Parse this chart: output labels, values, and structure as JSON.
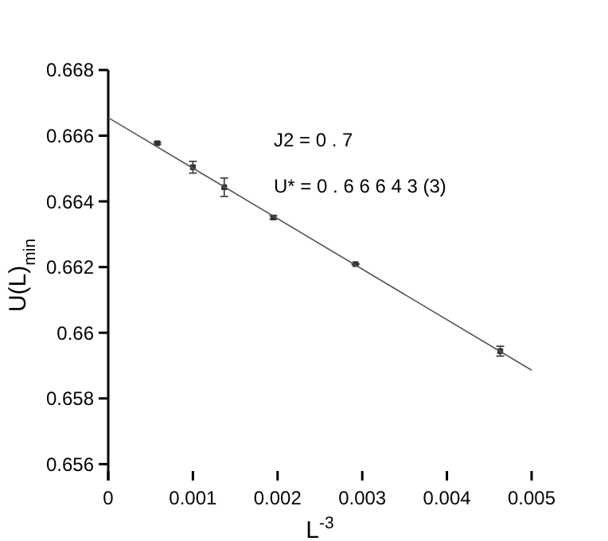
{
  "chart_data": {
    "type": "scatter",
    "xlabel": "L$^{-3}$",
    "ylabel": "U(L)$_{min}$",
    "xlim": [
      0,
      0.005
    ],
    "xticks": [
      0,
      0.001,
      0.002,
      0.003,
      0.004,
      0.005
    ],
    "ylim": [
      0.6555,
      0.668
    ],
    "yticks": [
      0.656,
      0.658,
      0.66,
      0.662,
      0.664,
      0.666,
      0.668
    ],
    "grid": false,
    "annotations": [
      "J2 = 0 . 7",
      "U* = 0 . 6 6 6 4 3 (3)"
    ],
    "series": [
      {
        "color": "#333333",
        "marker": "square",
        "x": [
          0.00058,
          0.001,
          0.00137,
          0.00195,
          0.00292,
          0.00463
        ],
        "values": [
          0.66577,
          0.66504,
          0.66443,
          0.66351,
          0.66209,
          0.65944
        ],
        "errors": [
          3e-05,
          0.00018,
          0.00028,
          5e-05,
          2e-05,
          0.00015
        ]
      },
      {
        "type": "line",
        "color": "#555555",
        "x": [
          0,
          0.005
        ],
        "values": [
          0.66655,
          0.65886
        ],
        "line_style": "solid",
        "marker": "none"
      }
    ]
  }
}
